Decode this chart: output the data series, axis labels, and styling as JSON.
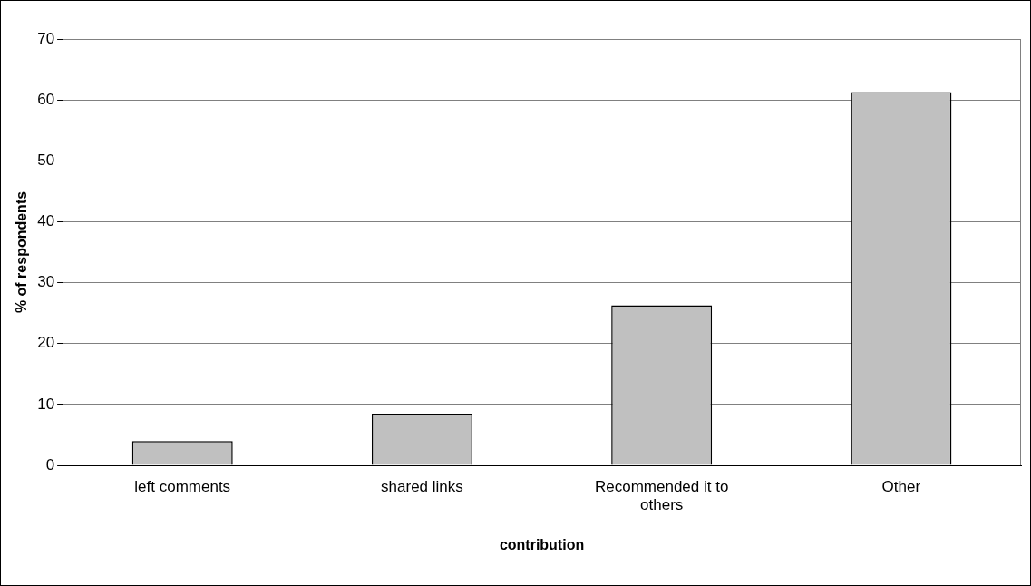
{
  "chart_data": {
    "type": "bar",
    "xlabel": "contribution",
    "ylabel": "% of respondents",
    "categories": [
      "left comments",
      "shared links",
      "Recommended it to others",
      "Other"
    ],
    "values": [
      4,
      8.5,
      26.3,
      61.3
    ],
    "color": "#c0c0c0",
    "ylim": [
      0,
      70
    ],
    "yticks": [
      0,
      10,
      20,
      30,
      40,
      50,
      60,
      70
    ],
    "grid": "y",
    "legend": false
  }
}
